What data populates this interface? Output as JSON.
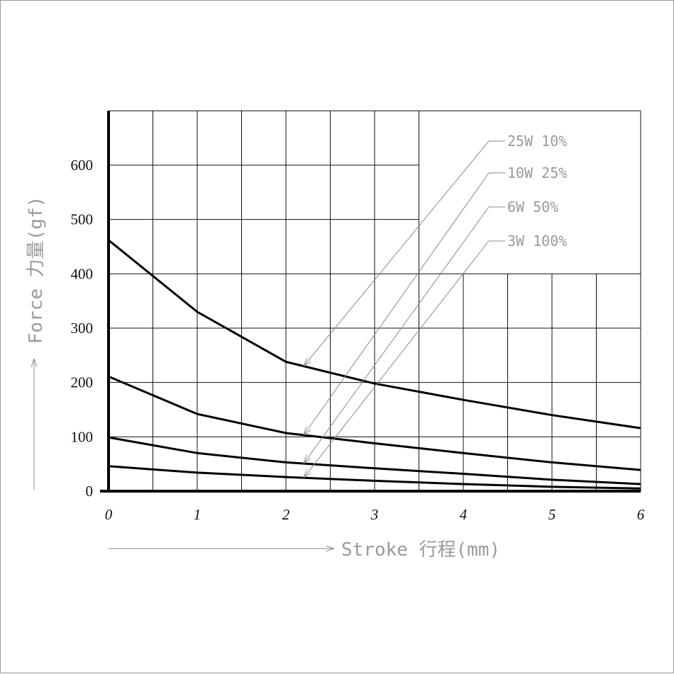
{
  "chart_data": {
    "type": "line",
    "xlabel": "Stroke 行程(mm)",
    "ylabel": "Force 力量(gf)",
    "xlim": [
      0,
      6
    ],
    "ylim": [
      0,
      700
    ],
    "x_ticks": [
      "0",
      "1",
      "2",
      "3",
      "4",
      "5",
      "6"
    ],
    "y_ticks": [
      "0",
      "100",
      "200",
      "300",
      "400",
      "500",
      "600"
    ],
    "grid": true,
    "legend_position": "top-right",
    "series": [
      {
        "name": "25W 10%",
        "points": [
          [
            0,
            462
          ],
          [
            1,
            330
          ],
          [
            2,
            238
          ],
          [
            3,
            198
          ],
          [
            4,
            168
          ],
          [
            5,
            140
          ],
          [
            6,
            116
          ]
        ]
      },
      {
        "name": "10W 25%",
        "points": [
          [
            0,
            211
          ],
          [
            1,
            142
          ],
          [
            2,
            107
          ],
          [
            3,
            88
          ],
          [
            4,
            70
          ],
          [
            5,
            53
          ],
          [
            6,
            39
          ]
        ]
      },
      {
        "name": "6W 50%",
        "points": [
          [
            0,
            99
          ],
          [
            1,
            70
          ],
          [
            2,
            53
          ],
          [
            3,
            42
          ],
          [
            4,
            32
          ],
          [
            5,
            21
          ],
          [
            6,
            13
          ]
        ]
      },
      {
        "name": "3W 100%",
        "points": [
          [
            0,
            46
          ],
          [
            1,
            34
          ],
          [
            2,
            26
          ],
          [
            3,
            19
          ],
          [
            4,
            13
          ],
          [
            5,
            8
          ],
          [
            6,
            5
          ]
        ]
      }
    ]
  }
}
